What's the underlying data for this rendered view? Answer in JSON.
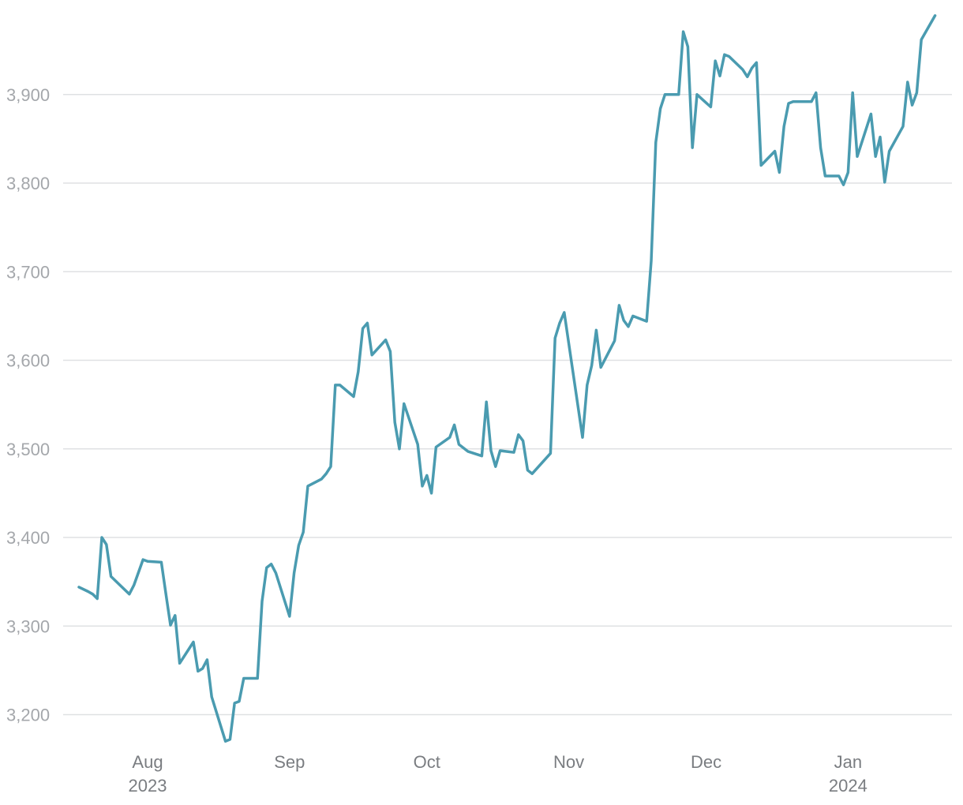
{
  "chart_data": {
    "type": "line",
    "title": "",
    "xlabel": "",
    "ylabel": "",
    "grid": true,
    "ylim": [
      3150,
      4000
    ],
    "xlim": [
      "2023-07-17",
      "2024-01-25"
    ],
    "y_ticks": [
      {
        "value": 3200,
        "label": "3,200"
      },
      {
        "value": 3300,
        "label": "3,300"
      },
      {
        "value": 3400,
        "label": "3,400"
      },
      {
        "value": 3500,
        "label": "3,500"
      },
      {
        "value": 3600,
        "label": "3,600"
      },
      {
        "value": 3700,
        "label": "3,700"
      },
      {
        "value": 3800,
        "label": "3,800"
      },
      {
        "value": 3900,
        "label": "3,900"
      }
    ],
    "x_ticks": [
      {
        "date": "2023-08-01",
        "label": "Aug",
        "sublabel": "2023"
      },
      {
        "date": "2023-09-01",
        "label": "Sep",
        "sublabel": ""
      },
      {
        "date": "2023-10-01",
        "label": "Oct",
        "sublabel": ""
      },
      {
        "date": "2023-11-01",
        "label": "Nov",
        "sublabel": ""
      },
      {
        "date": "2023-12-01",
        "label": "Dec",
        "sublabel": ""
      },
      {
        "date": "2024-01-01",
        "label": "Jan",
        "sublabel": "2024"
      }
    ],
    "series": [
      {
        "color": "#4a9bb0",
        "points": [
          [
            "2023-07-17",
            3344
          ],
          [
            "2023-07-19",
            3339
          ],
          [
            "2023-07-20",
            3336
          ],
          [
            "2023-07-21",
            3331
          ],
          [
            "2023-07-22",
            3400
          ],
          [
            "2023-07-23",
            3392
          ],
          [
            "2023-07-24",
            3356
          ],
          [
            "2023-07-26",
            3346
          ],
          [
            "2023-07-28",
            3336
          ],
          [
            "2023-07-29",
            3346
          ],
          [
            "2023-07-31",
            3375
          ],
          [
            "2023-08-01",
            3373
          ],
          [
            "2023-08-04",
            3372
          ],
          [
            "2023-08-05",
            3336
          ],
          [
            "2023-08-06",
            3301
          ],
          [
            "2023-08-07",
            3312
          ],
          [
            "2023-08-08",
            3258
          ],
          [
            "2023-08-11",
            3282
          ],
          [
            "2023-08-12",
            3249
          ],
          [
            "2023-08-13",
            3252
          ],
          [
            "2023-08-14",
            3262
          ],
          [
            "2023-08-15",
            3220
          ],
          [
            "2023-08-18",
            3170
          ],
          [
            "2023-08-19",
            3172
          ],
          [
            "2023-08-20",
            3213
          ],
          [
            "2023-08-21",
            3215
          ],
          [
            "2023-08-22",
            3241
          ],
          [
            "2023-08-25",
            3241
          ],
          [
            "2023-08-26",
            3328
          ],
          [
            "2023-08-27",
            3366
          ],
          [
            "2023-08-28",
            3370
          ],
          [
            "2023-08-29",
            3360
          ],
          [
            "2023-09-01",
            3311
          ],
          [
            "2023-09-02",
            3360
          ],
          [
            "2023-09-03",
            3391
          ],
          [
            "2023-09-04",
            3406
          ],
          [
            "2023-09-05",
            3458
          ],
          [
            "2023-09-08",
            3466
          ],
          [
            "2023-09-09",
            3472
          ],
          [
            "2023-09-10",
            3480
          ],
          [
            "2023-09-11",
            3572
          ],
          [
            "2023-09-12",
            3572
          ],
          [
            "2023-09-15",
            3559
          ],
          [
            "2023-09-16",
            3587
          ],
          [
            "2023-09-17",
            3636
          ],
          [
            "2023-09-18",
            3642
          ],
          [
            "2023-09-19",
            3606
          ],
          [
            "2023-09-22",
            3623
          ],
          [
            "2023-09-23",
            3610
          ],
          [
            "2023-09-24",
            3530
          ],
          [
            "2023-09-25",
            3500
          ],
          [
            "2023-09-26",
            3551
          ],
          [
            "2023-09-29",
            3505
          ],
          [
            "2023-09-30",
            3458
          ],
          [
            "2023-10-01",
            3470
          ],
          [
            "2023-10-02",
            3450
          ],
          [
            "2023-10-03",
            3502
          ],
          [
            "2023-10-06",
            3513
          ],
          [
            "2023-10-07",
            3527
          ],
          [
            "2023-10-08",
            3505
          ],
          [
            "2023-10-10",
            3497
          ],
          [
            "2023-10-13",
            3492
          ],
          [
            "2023-10-14",
            3553
          ],
          [
            "2023-10-15",
            3498
          ],
          [
            "2023-10-16",
            3480
          ],
          [
            "2023-10-17",
            3498
          ],
          [
            "2023-10-20",
            3496
          ],
          [
            "2023-10-21",
            3516
          ],
          [
            "2023-10-22",
            3509
          ],
          [
            "2023-10-23",
            3476
          ],
          [
            "2023-10-24",
            3472
          ],
          [
            "2023-10-28",
            3495
          ],
          [
            "2023-10-29",
            3625
          ],
          [
            "2023-10-30",
            3642
          ],
          [
            "2023-10-31",
            3654
          ],
          [
            "2023-11-04",
            3513
          ],
          [
            "2023-11-05",
            3572
          ],
          [
            "2023-11-06",
            3594
          ],
          [
            "2023-11-07",
            3634
          ],
          [
            "2023-11-08",
            3592
          ],
          [
            "2023-11-11",
            3622
          ],
          [
            "2023-11-12",
            3662
          ],
          [
            "2023-11-13",
            3645
          ],
          [
            "2023-11-14",
            3638
          ],
          [
            "2023-11-15",
            3650
          ],
          [
            "2023-11-18",
            3644
          ],
          [
            "2023-11-19",
            3712
          ],
          [
            "2023-11-20",
            3846
          ],
          [
            "2023-11-21",
            3884
          ],
          [
            "2023-11-22",
            3900
          ],
          [
            "2023-11-25",
            3900
          ],
          [
            "2023-11-26",
            3971
          ],
          [
            "2023-11-27",
            3954
          ],
          [
            "2023-11-28",
            3840
          ],
          [
            "2023-11-29",
            3900
          ],
          [
            "2023-12-02",
            3886
          ],
          [
            "2023-12-03",
            3938
          ],
          [
            "2023-12-04",
            3921
          ],
          [
            "2023-12-05",
            3945
          ],
          [
            "2023-12-06",
            3943
          ],
          [
            "2023-12-09",
            3928
          ],
          [
            "2023-12-10",
            3920
          ],
          [
            "2023-12-11",
            3930
          ],
          [
            "2023-12-12",
            3936
          ],
          [
            "2023-12-13",
            3820
          ],
          [
            "2023-12-16",
            3836
          ],
          [
            "2023-12-17",
            3812
          ],
          [
            "2023-12-18",
            3864
          ],
          [
            "2023-12-19",
            3890
          ],
          [
            "2023-12-20",
            3892
          ],
          [
            "2023-12-24",
            3892
          ],
          [
            "2023-12-25",
            3902
          ],
          [
            "2023-12-26",
            3840
          ],
          [
            "2023-12-27",
            3808
          ],
          [
            "2023-12-30",
            3808
          ],
          [
            "2023-12-31",
            3798
          ],
          [
            "2024-01-01",
            3812
          ],
          [
            "2024-01-02",
            3902
          ],
          [
            "2024-01-03",
            3830
          ],
          [
            "2024-01-06",
            3878
          ],
          [
            "2024-01-07",
            3830
          ],
          [
            "2024-01-08",
            3852
          ],
          [
            "2024-01-09",
            3801
          ],
          [
            "2024-01-10",
            3836
          ],
          [
            "2024-01-13",
            3864
          ],
          [
            "2024-01-14",
            3914
          ],
          [
            "2024-01-15",
            3888
          ],
          [
            "2024-01-16",
            3902
          ],
          [
            "2024-01-17",
            3962
          ],
          [
            "2024-01-20",
            3989
          ]
        ]
      }
    ]
  }
}
